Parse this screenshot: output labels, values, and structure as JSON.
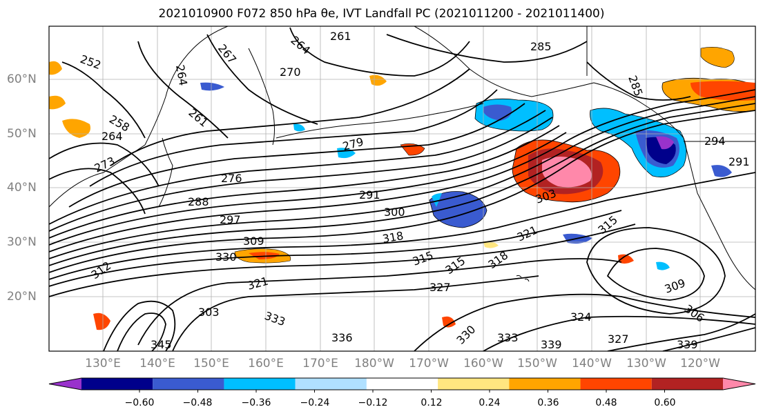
{
  "title": "2021010900 F072 850 hPa θe, IVT Landfall PC (2021011200 - 2021011400)",
  "latitude_labels": [
    "60°N",
    "50°N",
    "40°N",
    "30°N",
    "20°N"
  ],
  "longitude_labels": [
    "130°E",
    "140°E",
    "150°E",
    "160°E",
    "170°E",
    "180°W",
    "170°W",
    "160°W",
    "150°W",
    "140°W",
    "130°W",
    "120°W"
  ],
  "colorbar": {
    "colors": [
      "#9932cc",
      "#00008b",
      "#3a5bd0",
      "#00bfff",
      "#b0e0ff",
      "#ffffff",
      "#ffe680",
      "#ffa500",
      "#ff4500",
      "#b22222",
      "#ff88aa"
    ],
    "tick_labels": [
      "−0.60",
      "−0.48",
      "−0.36",
      "−0.24",
      "−0.12",
      "0.12",
      "0.24",
      "0.36",
      "0.48",
      "0.60"
    ]
  },
  "contour_labels": [
    "252",
    "264",
    "267",
    "261",
    "264",
    "270",
    "285",
    "258",
    "264",
    "273",
    "261",
    "279",
    "276",
    "288",
    "291",
    "297",
    "300",
    "303",
    "309",
    "318",
    "330",
    "312",
    "315",
    "315",
    "318",
    "321",
    "321",
    "327",
    "333",
    "336",
    "330",
    "333",
    "339",
    "324",
    "327",
    "339",
    "309",
    "306",
    "294",
    "291",
    "285",
    "315",
    "345",
    "303"
  ]
}
